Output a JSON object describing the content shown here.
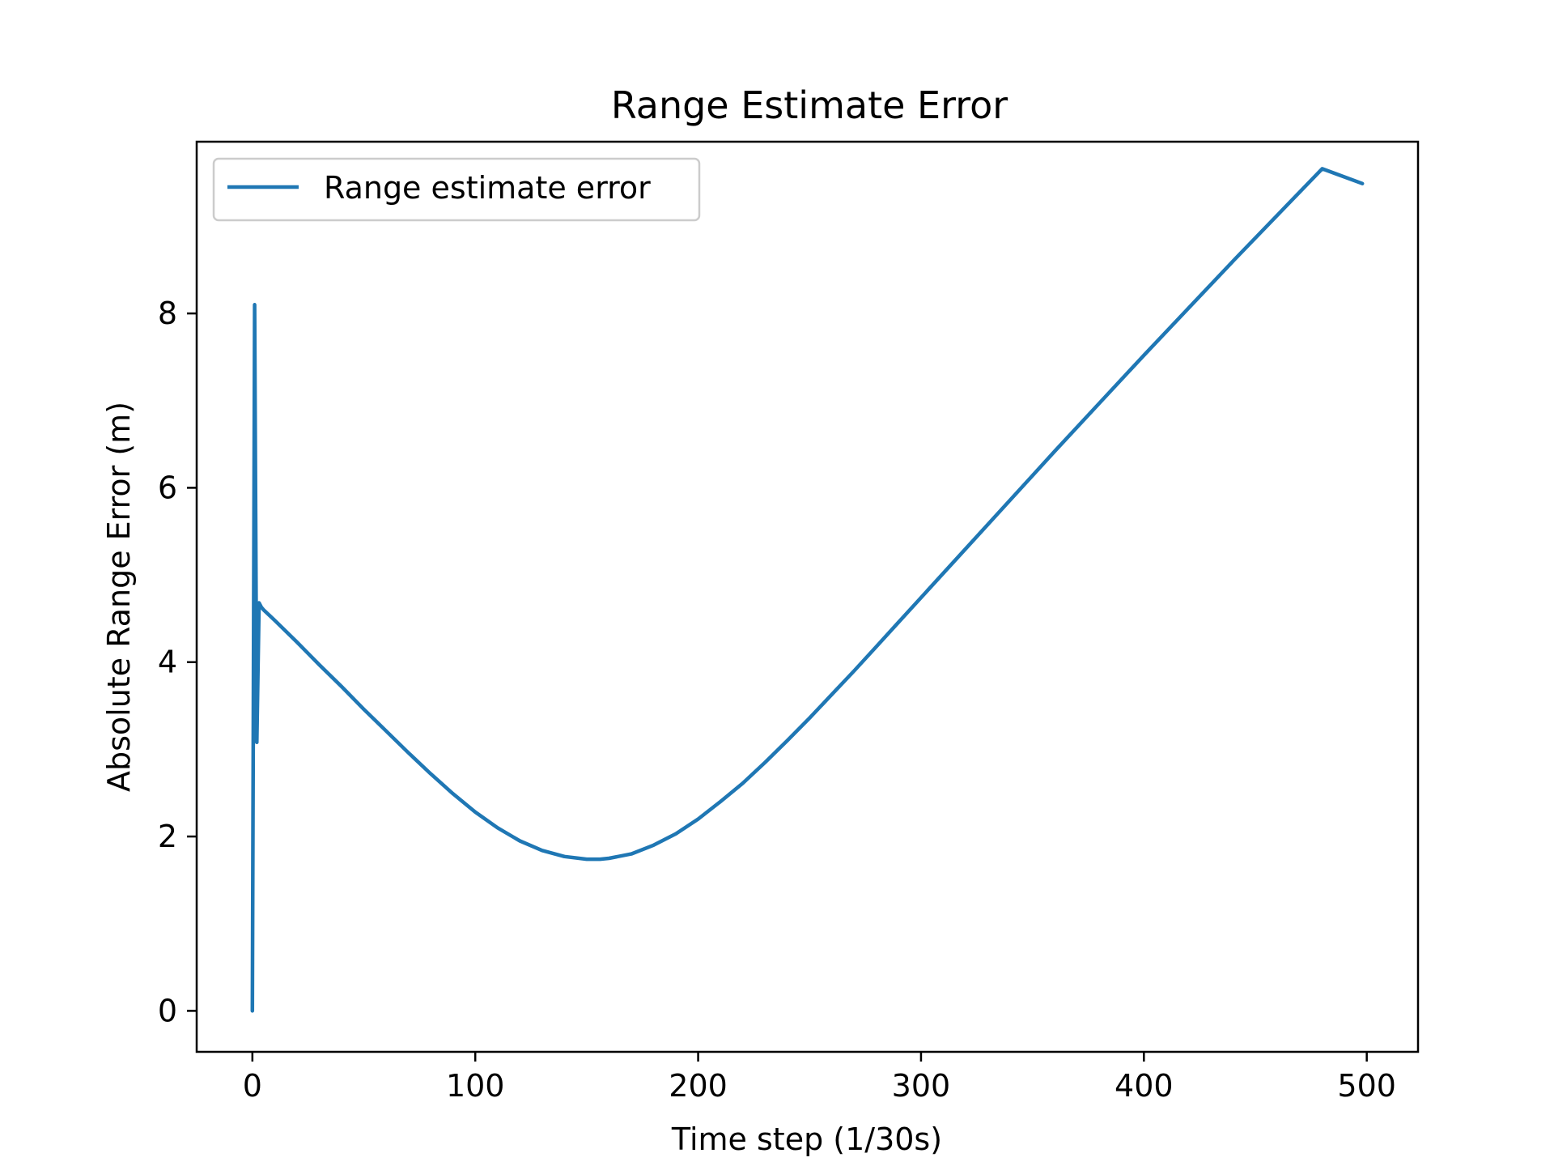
{
  "chart_data": {
    "type": "line",
    "title": "Range Estimate Error",
    "xlabel": "Time step (1/30s)",
    "ylabel": "Absolute Range Error (m)",
    "xlim": [
      -25,
      523
    ],
    "ylim": [
      -0.47,
      9.97
    ],
    "xticks": [
      0,
      100,
      200,
      300,
      400,
      500
    ],
    "yticks": [
      0,
      2,
      4,
      6,
      8
    ],
    "grid": false,
    "legend_position": "upper-left",
    "series": [
      {
        "name": "Range estimate error",
        "color": "#1f77b4",
        "x": [
          0,
          1,
          2,
          3,
          4,
          5,
          10,
          20,
          30,
          40,
          50,
          60,
          70,
          80,
          90,
          100,
          110,
          120,
          130,
          140,
          150,
          156,
          160,
          170,
          180,
          190,
          200,
          210,
          220,
          230,
          240,
          250,
          260,
          270,
          280,
          290,
          300,
          320,
          340,
          360,
          380,
          400,
          420,
          440,
          460,
          480,
          498
        ],
        "y": [
          0.0,
          8.1,
          3.08,
          4.68,
          4.63,
          4.6,
          4.48,
          4.23,
          3.97,
          3.72,
          3.46,
          3.21,
          2.96,
          2.72,
          2.49,
          2.28,
          2.1,
          1.95,
          1.84,
          1.77,
          1.74,
          1.74,
          1.75,
          1.8,
          1.9,
          2.03,
          2.2,
          2.4,
          2.61,
          2.85,
          3.1,
          3.36,
          3.63,
          3.9,
          4.18,
          4.46,
          4.74,
          5.3,
          5.86,
          6.42,
          6.97,
          7.52,
          8.06,
          8.6,
          9.13,
          9.66,
          9.49
        ]
      }
    ]
  }
}
